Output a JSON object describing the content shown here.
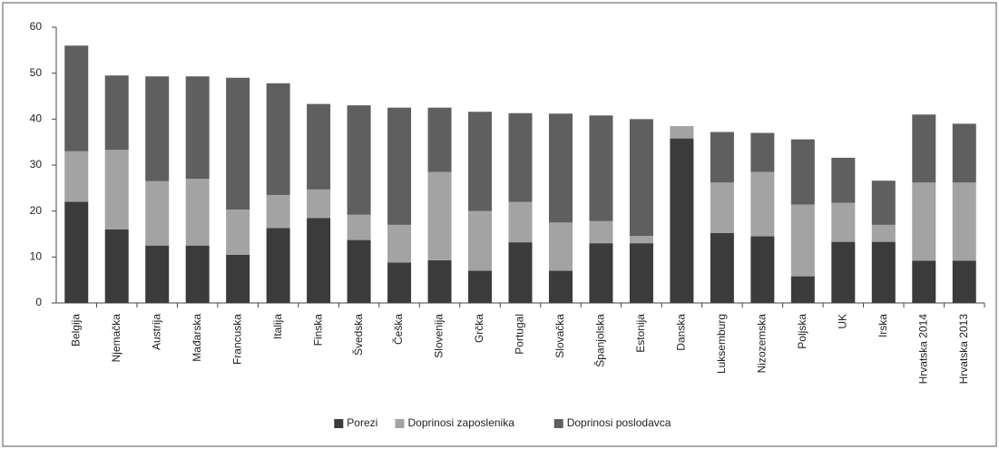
{
  "chart_data": {
    "type": "stacked_bar",
    "categories": [
      "Belgija",
      "Njemačka",
      "Austrija",
      "Mađarska",
      "Francuska",
      "Italija",
      "Finska",
      "Švedska",
      "Češka",
      "Slovenija",
      "Grčka",
      "Portugal",
      "Slovačka",
      "Španjolska",
      "Estonija",
      "Danska",
      "Luksemburg",
      "Nizozemska",
      "Poljska",
      "UK",
      "Irska",
      "Hrvatska 2014",
      "Hrvatska 2013"
    ],
    "series": [
      {
        "name": "Porezi",
        "color": "#3b3b3b",
        "values": [
          22,
          16,
          12.5,
          12.5,
          10.5,
          16.3,
          18.5,
          13.7,
          8.8,
          9.3,
          7,
          13.2,
          7,
          13,
          13,
          35.8,
          15.2,
          14.5,
          5.8,
          13.3,
          13.3,
          9.2,
          9.2
        ]
      },
      {
        "name": "Doprinosi zaposlenika",
        "color": "#a3a3a3",
        "values": [
          11,
          17.3,
          14,
          14.5,
          9.8,
          7.2,
          6.2,
          5.5,
          8.2,
          19.2,
          13,
          8.8,
          10.5,
          4.8,
          1.6,
          2.7,
          11,
          14,
          15.6,
          8.5,
          3.7,
          17,
          17
        ]
      },
      {
        "name": "Doprinosi poslodavca",
        "color": "#5f5f5f",
        "values": [
          23,
          16.2,
          22.8,
          22.3,
          28.7,
          24.3,
          18.6,
          23.8,
          25.5,
          14,
          21.6,
          19.3,
          23.7,
          23,
          25.4,
          0,
          11,
          8.5,
          14.2,
          9.8,
          9.6,
          14.8,
          12.8
        ]
      }
    ],
    "ylim": [
      0,
      60
    ],
    "yticks": [
      0,
      10,
      20,
      30,
      40,
      50,
      60
    ],
    "grid": false,
    "legend": "bottom"
  }
}
